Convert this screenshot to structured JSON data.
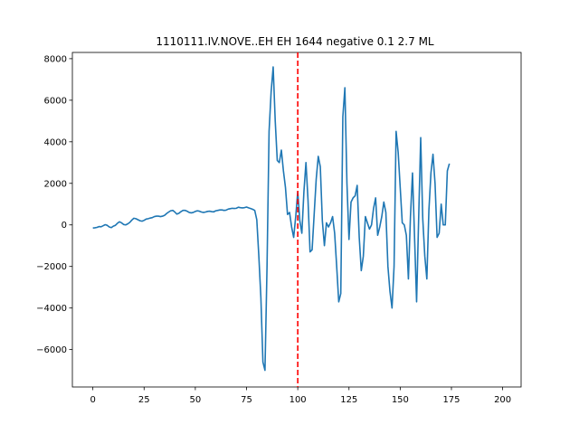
{
  "chart_data": {
    "type": "line",
    "title": "1110111.IV.NOVE..EH EH 1644 negative 0.1 2.7 ML",
    "xlabel": "",
    "ylabel": "",
    "xlim": [
      -10,
      209
    ],
    "ylim": [
      -7800,
      8300
    ],
    "x_ticks": [
      0,
      25,
      50,
      75,
      100,
      125,
      150,
      175,
      200
    ],
    "y_ticks": [
      -6000,
      -4000,
      -2000,
      0,
      2000,
      4000,
      6000,
      8000
    ],
    "grid": false,
    "legend": "none",
    "colors": {
      "line": "#1f77b4",
      "marker": "#ff0000"
    },
    "vline": {
      "x": 100,
      "style": "dashed"
    },
    "series": [
      {
        "values": [
          -150,
          -140,
          -120,
          -80,
          -90,
          -40,
          10,
          -20,
          -100,
          -130,
          -60,
          -20,
          80,
          150,
          100,
          20,
          0,
          50,
          120,
          230,
          320,
          300,
          250,
          200,
          180,
          220,
          280,
          300,
          330,
          350,
          400,
          420,
          420,
          400,
          420,
          460,
          550,
          620,
          680,
          700,
          620,
          520,
          560,
          640,
          700,
          700,
          660,
          600,
          580,
          600,
          650,
          680,
          660,
          620,
          600,
          620,
          650,
          660,
          640,
          630,
          680,
          700,
          720,
          720,
          700,
          710,
          760,
          780,
          800,
          790,
          800,
          850,
          830,
          820,
          830,
          860,
          820,
          790,
          750,
          700,
          250,
          -1500,
          -3500,
          -6600,
          -7000,
          -2000,
          4500,
          6400,
          7600,
          5000,
          3100,
          3000,
          3600,
          2600,
          1800,
          500,
          600,
          -100,
          -600,
          400,
          1600,
          200,
          -400,
          1600,
          3000,
          1200,
          -1300,
          -1200,
          500,
          2200,
          3300,
          2800,
          200,
          -1000,
          100,
          -100,
          100,
          400,
          -400,
          -2000,
          -3700,
          -3300,
          5200,
          6600,
          2000,
          -700,
          1100,
          1300,
          1400,
          1900,
          -600,
          -2200,
          -1500,
          400,
          100,
          -200,
          0,
          800,
          1300,
          -500,
          -100,
          400,
          1100,
          600,
          -2000,
          -3200,
          -4000,
          -2000,
          4500,
          3500,
          1800,
          100,
          0,
          -500,
          -2600,
          400,
          2500,
          -600,
          -3700,
          300,
          4200,
          300,
          -1500,
          -2600,
          700,
          2500,
          3400,
          2000,
          -600,
          -400,
          1000,
          0,
          0,
          2600,
          2950
        ]
      }
    ]
  }
}
